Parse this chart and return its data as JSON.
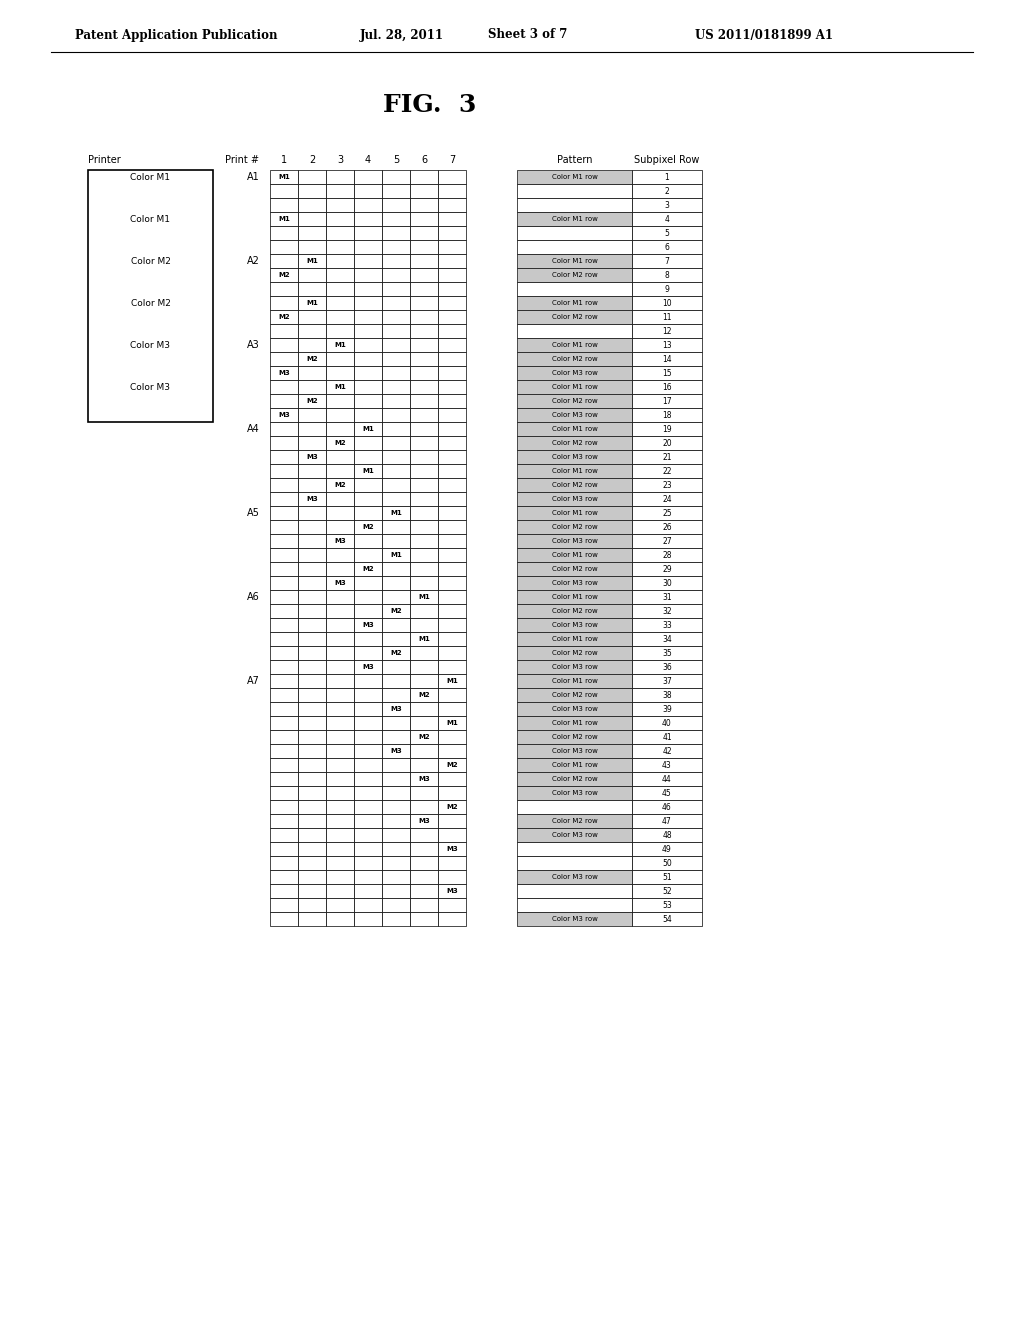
{
  "title": "FIG.  3",
  "printer_label": "Printer",
  "print_hash_label": "Print #",
  "pattern_label": "Pattern",
  "subpixel_row_label": "Subpixel Row",
  "print_columns": [
    "1",
    "2",
    "3",
    "4",
    "5",
    "6",
    "7"
  ],
  "A_labels": [
    "A1",
    "A2",
    "A3",
    "A4",
    "A5",
    "A6",
    "A7"
  ],
  "A_row_positions": [
    0,
    6,
    12,
    18,
    24,
    30,
    36
  ],
  "printer_entries": [
    {
      "label": "Color M1",
      "row": 0
    },
    {
      "label": "Color M1",
      "row": 3
    },
    {
      "label": "Color M2",
      "row": 6
    },
    {
      "label": "Color M2",
      "row": 9
    },
    {
      "label": "Color M3",
      "row": 12
    },
    {
      "label": "Color M3",
      "row": 15
    }
  ],
  "total_rows": 54,
  "grid_cols": 7,
  "cell_labels": [
    {
      "row": 0,
      "col": 0,
      "text": "M1"
    },
    {
      "row": 3,
      "col": 0,
      "text": "M1"
    },
    {
      "row": 6,
      "col": 1,
      "text": "M1"
    },
    {
      "row": 7,
      "col": 0,
      "text": "M2"
    },
    {
      "row": 9,
      "col": 1,
      "text": "M1"
    },
    {
      "row": 10,
      "col": 0,
      "text": "M2"
    },
    {
      "row": 12,
      "col": 2,
      "text": "M1"
    },
    {
      "row": 13,
      "col": 1,
      "text": "M2"
    },
    {
      "row": 14,
      "col": 0,
      "text": "M3"
    },
    {
      "row": 15,
      "col": 2,
      "text": "M1"
    },
    {
      "row": 16,
      "col": 1,
      "text": "M2"
    },
    {
      "row": 17,
      "col": 0,
      "text": "M3"
    },
    {
      "row": 18,
      "col": 3,
      "text": "M1"
    },
    {
      "row": 19,
      "col": 2,
      "text": "M2"
    },
    {
      "row": 20,
      "col": 1,
      "text": "M3"
    },
    {
      "row": 21,
      "col": 3,
      "text": "M1"
    },
    {
      "row": 22,
      "col": 2,
      "text": "M2"
    },
    {
      "row": 23,
      "col": 1,
      "text": "M3"
    },
    {
      "row": 24,
      "col": 4,
      "text": "M1"
    },
    {
      "row": 25,
      "col": 3,
      "text": "M2"
    },
    {
      "row": 26,
      "col": 2,
      "text": "M3"
    },
    {
      "row": 27,
      "col": 4,
      "text": "M1"
    },
    {
      "row": 28,
      "col": 3,
      "text": "M2"
    },
    {
      "row": 29,
      "col": 2,
      "text": "M3"
    },
    {
      "row": 30,
      "col": 5,
      "text": "M1"
    },
    {
      "row": 31,
      "col": 4,
      "text": "M2"
    },
    {
      "row": 32,
      "col": 3,
      "text": "M3"
    },
    {
      "row": 33,
      "col": 5,
      "text": "M1"
    },
    {
      "row": 34,
      "col": 4,
      "text": "M2"
    },
    {
      "row": 35,
      "col": 3,
      "text": "M3"
    },
    {
      "row": 36,
      "col": 6,
      "text": "M1"
    },
    {
      "row": 37,
      "col": 5,
      "text": "M2"
    },
    {
      "row": 38,
      "col": 4,
      "text": "M3"
    },
    {
      "row": 39,
      "col": 6,
      "text": "M1"
    },
    {
      "row": 40,
      "col": 5,
      "text": "M2"
    },
    {
      "row": 41,
      "col": 4,
      "text": "M3"
    },
    {
      "row": 42,
      "col": 6,
      "text": "M2"
    },
    {
      "row": 43,
      "col": 5,
      "text": "M3"
    },
    {
      "row": 45,
      "col": 6,
      "text": "M2"
    },
    {
      "row": 46,
      "col": 5,
      "text": "M3"
    },
    {
      "row": 48,
      "col": 6,
      "text": "M3"
    },
    {
      "row": 51,
      "col": 6,
      "text": "M3"
    }
  ],
  "pattern_entries": [
    {
      "row": 0,
      "text": "Color M1 row"
    },
    {
      "row": 3,
      "text": "Color M1 row"
    },
    {
      "row": 6,
      "text": "Color M1 row"
    },
    {
      "row": 7,
      "text": "Color M2 row"
    },
    {
      "row": 9,
      "text": "Color M1 row"
    },
    {
      "row": 10,
      "text": "Color M2 row"
    },
    {
      "row": 12,
      "text": "Color M1 row"
    },
    {
      "row": 13,
      "text": "Color M2 row"
    },
    {
      "row": 14,
      "text": "Color M3 row"
    },
    {
      "row": 15,
      "text": "Color M1 row"
    },
    {
      "row": 16,
      "text": "Color M2 row"
    },
    {
      "row": 17,
      "text": "Color M3 row"
    },
    {
      "row": 18,
      "text": "Color M1 row"
    },
    {
      "row": 19,
      "text": "Color M2 row"
    },
    {
      "row": 20,
      "text": "Color M3 row"
    },
    {
      "row": 21,
      "text": "Color M1 row"
    },
    {
      "row": 22,
      "text": "Color M2 row"
    },
    {
      "row": 23,
      "text": "Color M3 row"
    },
    {
      "row": 24,
      "text": "Color M1 row"
    },
    {
      "row": 25,
      "text": "Color M2 row"
    },
    {
      "row": 26,
      "text": "Color M3 row"
    },
    {
      "row": 27,
      "text": "Color M1 row"
    },
    {
      "row": 28,
      "text": "Color M2 row"
    },
    {
      "row": 29,
      "text": "Color M3 row"
    },
    {
      "row": 30,
      "text": "Color M1 row"
    },
    {
      "row": 31,
      "text": "Color M2 row"
    },
    {
      "row": 32,
      "text": "Color M3 row"
    },
    {
      "row": 33,
      "text": "Color M1 row"
    },
    {
      "row": 34,
      "text": "Color M2 row"
    },
    {
      "row": 35,
      "text": "Color M3 row"
    },
    {
      "row": 36,
      "text": "Color M1 row"
    },
    {
      "row": 37,
      "text": "Color M2 row"
    },
    {
      "row": 38,
      "text": "Color M3 row"
    },
    {
      "row": 39,
      "text": "Color M1 row"
    },
    {
      "row": 40,
      "text": "Color M2 row"
    },
    {
      "row": 41,
      "text": "Color M3 row"
    },
    {
      "row": 42,
      "text": "Color M1 row"
    },
    {
      "row": 43,
      "text": "Color M2 row"
    },
    {
      "row": 44,
      "text": "Color M3 row"
    },
    {
      "row": 46,
      "text": "Color M2 row"
    },
    {
      "row": 47,
      "text": "Color M3 row"
    },
    {
      "row": 50,
      "text": "Color M3 row"
    },
    {
      "row": 53,
      "text": "Color M3 row"
    }
  ]
}
